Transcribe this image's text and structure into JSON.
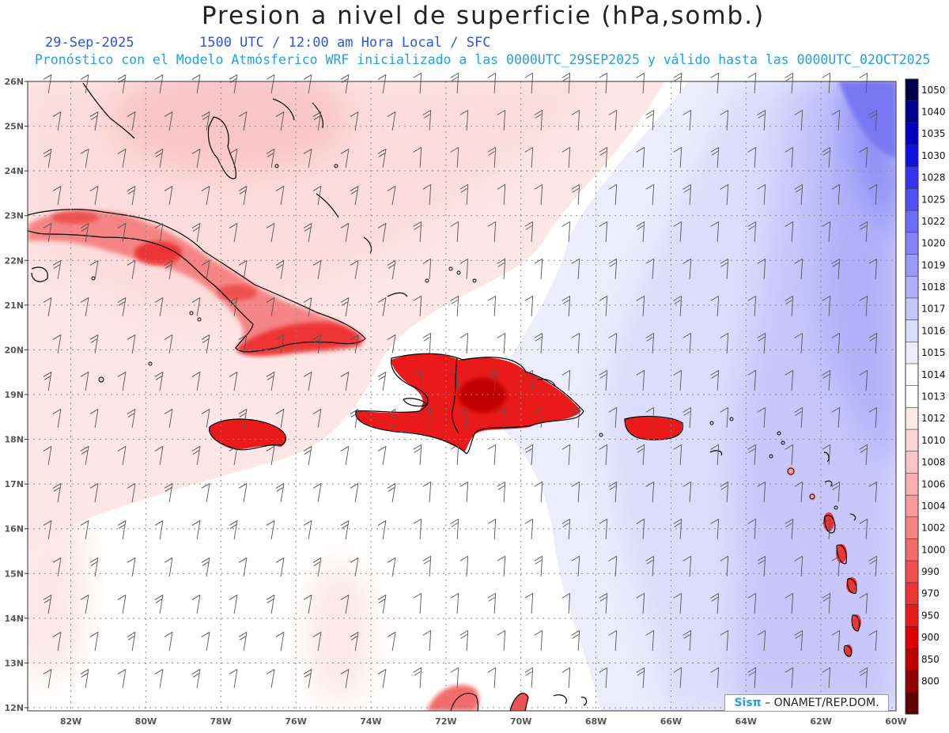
{
  "title": "Presion a nivel de superficie (hPa,somb.)",
  "date": "29-Sep-2025",
  "time": "1500 UTC / 12:00 am Hora Local / SFC",
  "model_line": "Pronóstico con el Modelo Atmósferico WRF inicializado a las 0000UTC_29SEP2025 y válido hasta las  0000UTC_02OCT2025",
  "credit": {
    "brand": "Sisπ",
    "text": "– ONAMET/REP.DOM."
  },
  "lat_labels": [
    "26N",
    "25N",
    "24N",
    "23N",
    "22N",
    "21N",
    "20N",
    "19N",
    "18N",
    "17N",
    "16N",
    "15N",
    "14N",
    "13N",
    "12N"
  ],
  "lon_labels": [
    "82W",
    "80W",
    "78W",
    "76W",
    "74W",
    "72W",
    "70W",
    "68W",
    "66W",
    "64W",
    "62W",
    "60W"
  ],
  "colorbar": {
    "levels": [
      "1050",
      "1040",
      "1035",
      "1030",
      "1028",
      "1025",
      "1022",
      "1020",
      "1019",
      "1018",
      "1017",
      "1016",
      "1015",
      "1014",
      "1013",
      "1012",
      "1010",
      "1008",
      "1006",
      "1004",
      "1002",
      "1000",
      "990",
      "970",
      "950",
      "900",
      "850",
      "800"
    ],
    "colors": [
      "#00004a",
      "#000090",
      "#0000c0",
      "#1010e0",
      "#3434f0",
      "#5050f4",
      "#6c6cf6",
      "#8484f8",
      "#9a9af9",
      "#b0b0fa",
      "#c6c6fb",
      "#dcdcfc",
      "#ececfd",
      "#ffffff",
      "#ffffff",
      "#fde8e8",
      "#fcd6d6",
      "#fbc4c4",
      "#f9b0b0",
      "#f79a9a",
      "#f58484",
      "#f36c6c",
      "#f05050",
      "#ee3434",
      "#ea1a1a",
      "#e00000",
      "#c00000",
      "#900000",
      "#600000"
    ]
  }
}
